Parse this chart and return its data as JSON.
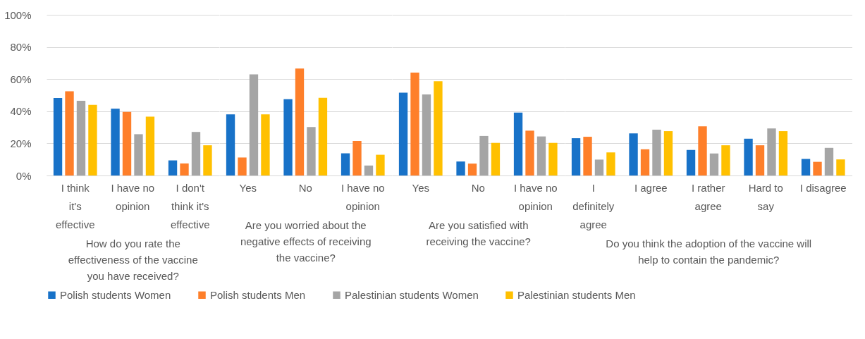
{
  "chart_data": [
    {
      "type": "bar",
      "xlabel": "How do you rate the effectiveness of the vaccine you have received?",
      "categories": [
        "I think it's effective",
        "I have no opinion",
        "I don't think it's effective"
      ],
      "series": [
        {
          "name": "Polish students Women",
          "color": "#1872c8",
          "values": [
            48.2,
            41.6,
            9.4
          ]
        },
        {
          "name": "Polish students Men",
          "color": "#fe7f2a",
          "values": [
            52.4,
            39.6,
            7.5
          ]
        },
        {
          "name": "Palestinian students Women",
          "color": "#a5a5a5",
          "values": [
            46.5,
            25.7,
            27.1
          ]
        },
        {
          "name": "Palestinian students Men",
          "color": "#ffc000",
          "values": [
            44.0,
            36.6,
            18.8
          ]
        }
      ],
      "ylim": [
        0,
        100
      ],
      "yticks": [
        {
          "value": 0,
          "label": "0%"
        },
        {
          "value": 20,
          "label": "20%"
        },
        {
          "value": 40,
          "label": "40%"
        },
        {
          "value": 60,
          "label": "60%"
        },
        {
          "value": 80,
          "label": "80%"
        },
        {
          "value": 100,
          "label": "100%"
        }
      ],
      "grid": "y",
      "legend": "bottom"
    },
    {
      "type": "bar",
      "xlabel": "Are you worried about the negative effects of receiving the vaccine?",
      "categories": [
        "Yes",
        "No",
        "I have no opinion"
      ],
      "series": [
        {
          "name": "Polish students Women",
          "color": "#1872c8",
          "values": [
            38.1,
            47.5,
            13.8
          ]
        },
        {
          "name": "Polish students Men",
          "color": "#fe7f2a",
          "values": [
            11.2,
            66.6,
            21.5
          ]
        },
        {
          "name": "Palestinian students Women",
          "color": "#a5a5a5",
          "values": [
            62.9,
            30.1,
            6.2
          ]
        },
        {
          "name": "Palestinian students Men",
          "color": "#ffc000",
          "values": [
            38.1,
            48.4,
            12.9
          ]
        }
      ],
      "ylim": [
        0,
        100
      ],
      "tick_labels": "x",
      "grid": "y"
    },
    {
      "type": "bar",
      "xlabel": "Are you satisfied with receiving the vaccine?",
      "categories": [
        "Yes",
        "No",
        "I have no opinion"
      ],
      "series": [
        {
          "name": "Polish students Women",
          "color": "#1872c8",
          "values": [
            51.5,
            8.7,
            39.1
          ]
        },
        {
          "name": "Polish students Men",
          "color": "#fe7f2a",
          "values": [
            64.0,
            7.4,
            27.9
          ]
        },
        {
          "name": "Palestinian students Women",
          "color": "#a5a5a5",
          "values": [
            50.4,
            24.6,
            24.3
          ]
        },
        {
          "name": "Palestinian students Men",
          "color": "#ffc000",
          "values": [
            58.7,
            20.3,
            20.3
          ]
        }
      ],
      "ylim": [
        0,
        100
      ],
      "tick_labels": "x",
      "grid": "y"
    },
    {
      "type": "bar",
      "xlabel": "Do you think the adoption of the vaccine will help to contain the pandemic?",
      "categories": [
        "I definitely agree",
        "I agree",
        "I rather agree",
        "Hard to say",
        "I disagree"
      ],
      "series": [
        {
          "name": "Polish students Women",
          "color": "#1872c8",
          "values": [
            23.2,
            26.2,
            15.9,
            22.9,
            10.3
          ]
        },
        {
          "name": "Polish students Men",
          "color": "#fe7f2a",
          "values": [
            24.1,
            16.3,
            30.6,
            18.8,
            8.5
          ]
        },
        {
          "name": "Palestinian students Women",
          "color": "#a5a5a5",
          "values": [
            9.9,
            28.5,
            13.7,
            29.3,
            17.2
          ]
        },
        {
          "name": "Palestinian students Men",
          "color": "#ffc000",
          "values": [
            14.4,
            27.6,
            18.8,
            27.6,
            10.0
          ]
        }
      ],
      "ylim": [
        0,
        100
      ],
      "tick_labels": "x",
      "grid": "y"
    }
  ]
}
